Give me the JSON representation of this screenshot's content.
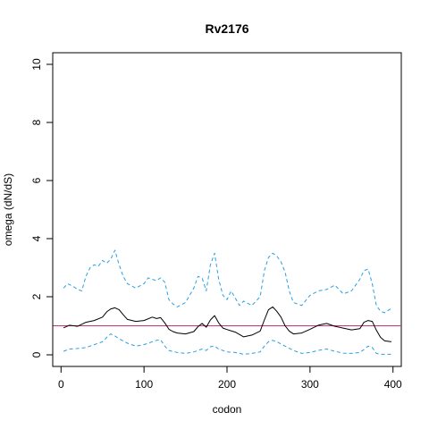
{
  "chart_data": {
    "type": "line",
    "title": "Rv2176",
    "xlabel": "codon",
    "ylabel": "omega (dN/dS)",
    "xlim": [
      -10,
      410
    ],
    "ylim": [
      -0.4,
      10.4
    ],
    "xticks": [
      0,
      100,
      200,
      300,
      400
    ],
    "yticks": [
      0,
      2,
      4,
      6,
      8,
      10
    ],
    "grid": false,
    "reference_line": {
      "y": 1,
      "color": "#cc3377"
    },
    "series": [
      {
        "color": "#000000",
        "style": "solid",
        "x": [
          3,
          10,
          20,
          30,
          40,
          50,
          55,
          60,
          65,
          70,
          75,
          80,
          90,
          100,
          110,
          115,
          120,
          125,
          130,
          135,
          140,
          150,
          160,
          165,
          170,
          175,
          180,
          185,
          190,
          195,
          200,
          210,
          220,
          230,
          240,
          245,
          250,
          255,
          260,
          265,
          270,
          275,
          280,
          290,
          300,
          310,
          320,
          330,
          340,
          350,
          360,
          365,
          370,
          375,
          380,
          385,
          390,
          398
        ],
        "y": [
          0.93,
          1.02,
          0.98,
          1.12,
          1.18,
          1.3,
          1.48,
          1.58,
          1.62,
          1.55,
          1.38,
          1.22,
          1.15,
          1.18,
          1.3,
          1.25,
          1.28,
          1.1,
          0.88,
          0.8,
          0.75,
          0.72,
          0.8,
          0.97,
          1.08,
          0.95,
          1.2,
          1.35,
          1.1,
          0.92,
          0.87,
          0.78,
          0.62,
          0.68,
          0.82,
          1.2,
          1.55,
          1.65,
          1.5,
          1.3,
          1.0,
          0.82,
          0.72,
          0.75,
          0.88,
          1.02,
          1.08,
          0.98,
          0.92,
          0.86,
          0.9,
          1.12,
          1.18,
          1.15,
          0.85,
          0.6,
          0.48,
          0.45
        ]
      },
      {
        "color": "#2b9fe0",
        "style": "dashed",
        "x": [
          3,
          8,
          15,
          20,
          25,
          30,
          35,
          40,
          45,
          50,
          55,
          60,
          65,
          70,
          75,
          80,
          90,
          100,
          105,
          110,
          115,
          120,
          125,
          130,
          135,
          140,
          150,
          160,
          165,
          170,
          175,
          180,
          185,
          190,
          195,
          200,
          205,
          210,
          215,
          220,
          230,
          240,
          245,
          250,
          255,
          260,
          265,
          270,
          275,
          280,
          290,
          300,
          310,
          320,
          330,
          340,
          350,
          360,
          365,
          370,
          375,
          380,
          385,
          390,
          398
        ],
        "y": [
          2.3,
          2.45,
          2.35,
          2.25,
          2.2,
          2.7,
          3.0,
          3.1,
          3.05,
          3.25,
          3.15,
          3.3,
          3.6,
          3.1,
          2.7,
          2.45,
          2.3,
          2.45,
          2.65,
          2.6,
          2.55,
          2.65,
          2.5,
          1.9,
          1.75,
          1.65,
          1.8,
          2.3,
          2.7,
          2.65,
          2.2,
          3.1,
          3.5,
          2.6,
          2.05,
          1.9,
          2.2,
          1.95,
          1.7,
          1.85,
          1.7,
          2.0,
          2.9,
          3.35,
          3.5,
          3.4,
          3.2,
          2.85,
          2.2,
          1.8,
          1.7,
          2.05,
          2.2,
          2.25,
          2.4,
          2.1,
          2.2,
          2.6,
          2.9,
          2.95,
          2.45,
          1.7,
          1.5,
          1.45,
          1.6
        ]
      },
      {
        "color": "#2b9fe0",
        "style": "dashed",
        "x": [
          3,
          10,
          20,
          30,
          40,
          50,
          55,
          60,
          65,
          70,
          80,
          90,
          100,
          110,
          115,
          120,
          125,
          130,
          140,
          150,
          160,
          170,
          175,
          180,
          185,
          190,
          200,
          210,
          220,
          230,
          240,
          245,
          250,
          255,
          260,
          270,
          280,
          290,
          300,
          310,
          320,
          330,
          340,
          350,
          360,
          365,
          370,
          375,
          380,
          385,
          390,
          398
        ],
        "y": [
          0.12,
          0.2,
          0.22,
          0.25,
          0.35,
          0.45,
          0.6,
          0.72,
          0.65,
          0.55,
          0.4,
          0.3,
          0.35,
          0.45,
          0.5,
          0.52,
          0.3,
          0.15,
          0.08,
          0.05,
          0.1,
          0.2,
          0.15,
          0.28,
          0.3,
          0.2,
          0.1,
          0.08,
          0.02,
          0.05,
          0.1,
          0.3,
          0.45,
          0.5,
          0.45,
          0.3,
          0.15,
          0.05,
          0.08,
          0.15,
          0.2,
          0.12,
          0.06,
          0.05,
          0.08,
          0.18,
          0.3,
          0.25,
          0.05,
          0.02,
          0.02,
          0.02
        ]
      }
    ]
  }
}
